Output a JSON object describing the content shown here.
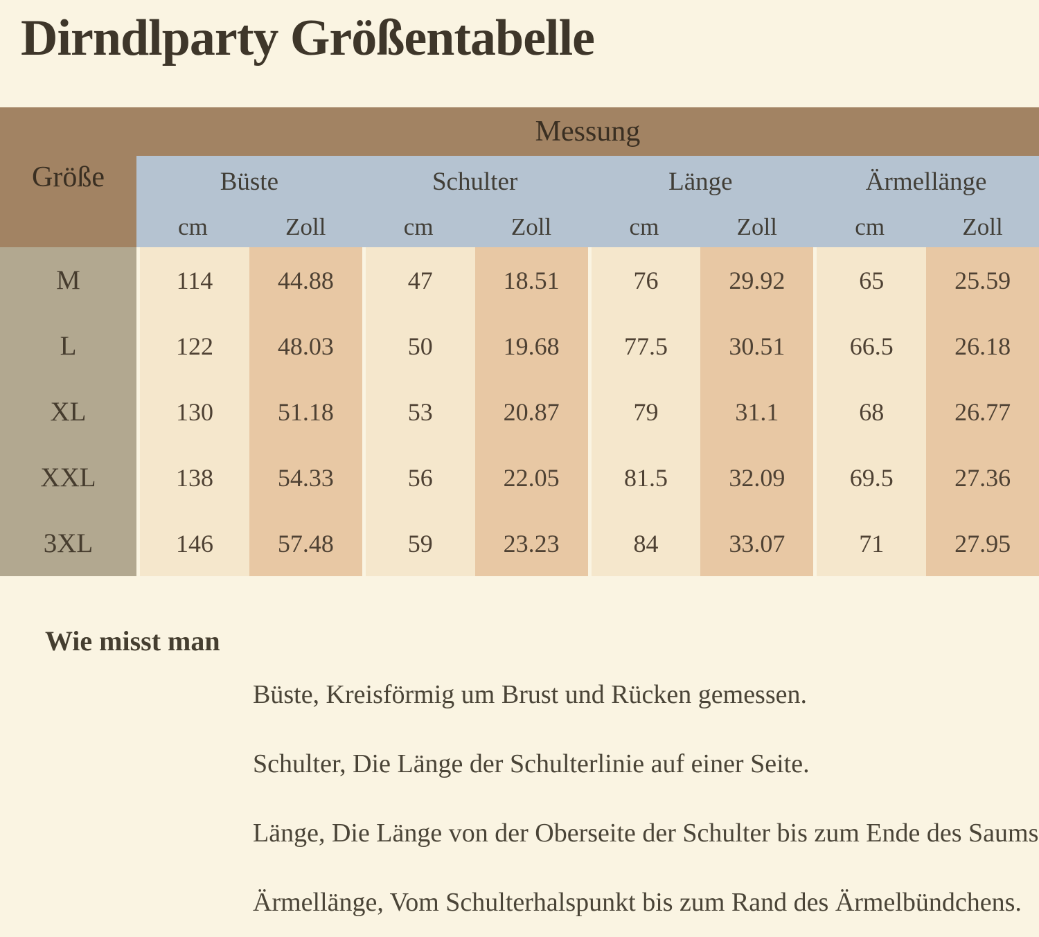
{
  "page": {
    "title": "Dirndlparty Größentabelle",
    "background_color": "#faf4e2"
  },
  "table": {
    "messung_label": "Messung",
    "groesse_label": "Größe",
    "groups": [
      {
        "label": "Büste"
      },
      {
        "label": "Schulter"
      },
      {
        "label": "Länge"
      },
      {
        "label": "Ärmellänge"
      }
    ],
    "units": [
      "cm",
      "Zoll",
      "cm",
      "Zoll",
      "cm",
      "Zoll",
      "cm",
      "Zoll"
    ],
    "rows": [
      {
        "size": "M",
        "values": [
          "114",
          "44.88",
          "47",
          "18.51",
          "76",
          "29.92",
          "65",
          "25.59"
        ]
      },
      {
        "size": "L",
        "values": [
          "122",
          "48.03",
          "50",
          "19.68",
          "77.5",
          "30.51",
          "66.5",
          "26.18"
        ]
      },
      {
        "size": "XL",
        "values": [
          "130",
          "51.18",
          "53",
          "20.87",
          "79",
          "31.1",
          "68",
          "26.77"
        ]
      },
      {
        "size": "XXL",
        "values": [
          "138",
          "54.33",
          "56",
          "22.05",
          "81.5",
          "32.09",
          "69.5",
          "27.36"
        ]
      },
      {
        "size": "3XL",
        "values": [
          "146",
          "57.48",
          "59",
          "23.23",
          "84",
          "33.07",
          "71",
          "27.95"
        ]
      }
    ],
    "colors": {
      "header_brown": "#a28363",
      "header_blue": "#b5c3d1",
      "size_column_taupe": "#b2a890",
      "cm_column_cream": "#f5e7cc",
      "zoll_column_tan": "#e8c8a4"
    }
  },
  "how_to_measure": {
    "heading": "Wie misst man",
    "lines": [
      "Büste, Kreisförmig um Brust und Rücken gemessen.",
      "Schulter, Die Länge der Schulterlinie auf einer Seite.",
      "Länge, Die Länge von der Oberseite der Schulter bis zum Ende des Saums.",
      "Ärmellänge, Vom Schulterhalspunkt bis zum Rand des Ärmelbündchens."
    ]
  }
}
